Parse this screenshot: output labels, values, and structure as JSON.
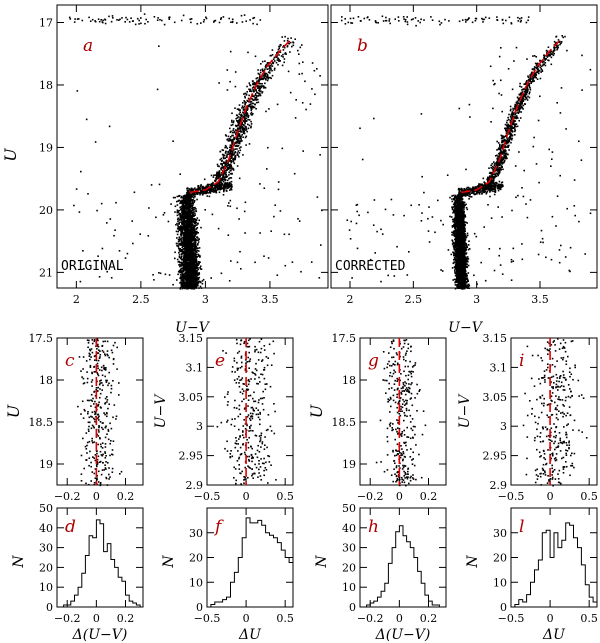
{
  "colors": {
    "points": "#000000",
    "fiducial": "#e00000",
    "letters": "#b00000",
    "hist": "#000000"
  },
  "chart_data": [
    {
      "id": "a",
      "type": "scatter",
      "panel_letter": "a",
      "annotation": "ORIGINAL",
      "title": "",
      "xlabel": "U−V",
      "ylabel": "U",
      "xlim": [
        1.85,
        3.95
      ],
      "ylim": [
        21.25,
        16.72
      ],
      "xticks": [
        2,
        2.5,
        3,
        3.5
      ],
      "xtick_labels": [
        "2",
        "2.5",
        "3",
        "3.5"
      ],
      "yticks": [
        17,
        18,
        19,
        20,
        21
      ],
      "ytick_labels": [
        "17",
        "18",
        "19",
        "20",
        "21"
      ],
      "fiducial_line": {
        "x": [
          2.88,
          3.0,
          3.1,
          3.18,
          3.25,
          3.32,
          3.4,
          3.48,
          3.58,
          3.65
        ],
        "y": [
          19.72,
          19.68,
          19.55,
          19.2,
          18.75,
          18.35,
          17.98,
          17.7,
          17.45,
          17.3
        ]
      }
    },
    {
      "id": "b",
      "type": "scatter",
      "panel_letter": "b",
      "annotation": "CORRECTED",
      "title": "",
      "xlabel": "U−V",
      "ylabel": "",
      "xlim": [
        1.85,
        3.95
      ],
      "ylim": [
        21.25,
        16.72
      ],
      "xticks": [
        2,
        2.5,
        3,
        3.5
      ],
      "xtick_labels": [
        "2",
        "2.5",
        "3",
        "3.5"
      ],
      "yticks": [
        17,
        18,
        19,
        20,
        21
      ],
      "ytick_labels": [],
      "fiducial_line": {
        "x": [
          2.88,
          3.0,
          3.1,
          3.18,
          3.25,
          3.32,
          3.4,
          3.48,
          3.58,
          3.65
        ],
        "y": [
          19.72,
          19.68,
          19.55,
          19.2,
          18.75,
          18.35,
          17.98,
          17.7,
          17.45,
          17.3
        ]
      }
    },
    {
      "id": "c",
      "type": "scatter",
      "panel_letter": "c",
      "xlabel": "",
      "ylabel": "U",
      "xlim": [
        -0.27,
        0.32
      ],
      "ylim": [
        19.25,
        17.5
      ],
      "xticks": [
        -0.2,
        0,
        0.2
      ],
      "xtick_labels": [
        "−0.2",
        "0",
        "0.2"
      ],
      "yticks": [
        17.5,
        18,
        18.5,
        19
      ],
      "ytick_labels": [
        "17.5",
        "18",
        "18.5",
        "19"
      ],
      "reference_line": 0
    },
    {
      "id": "e",
      "type": "scatter",
      "panel_letter": "e",
      "xlabel": "",
      "ylabel": "U−V",
      "xlim": [
        -0.5,
        0.6
      ],
      "ylim": [
        2.9,
        3.15
      ],
      "xticks": [
        -0.5,
        0,
        0.5
      ],
      "xtick_labels": [
        "−0.5",
        "0",
        "0.5"
      ],
      "yticks": [
        2.9,
        2.95,
        3,
        3.05,
        3.1,
        3.15
      ],
      "ytick_labels": [
        "2.9",
        "2.95",
        "3",
        "3.05",
        "3.1",
        "3.15"
      ],
      "reference_line": 0
    },
    {
      "id": "g",
      "type": "scatter",
      "panel_letter": "g",
      "xlabel": "",
      "ylabel": "U",
      "xlim": [
        -0.27,
        0.32
      ],
      "ylim": [
        19.25,
        17.5
      ],
      "xticks": [
        -0.2,
        0,
        0.2
      ],
      "xtick_labels": [
        "−0.2",
        "0",
        "0.2"
      ],
      "yticks": [
        17.5,
        18,
        18.5,
        19
      ],
      "ytick_labels": [
        "17.5",
        "18",
        "18.5",
        "19"
      ],
      "reference_line": 0
    },
    {
      "id": "i",
      "type": "scatter",
      "panel_letter": "i",
      "xlabel": "",
      "ylabel": "U−V",
      "xlim": [
        -0.5,
        0.6
      ],
      "ylim": [
        2.9,
        3.15
      ],
      "xticks": [
        -0.5,
        0,
        0.5
      ],
      "xtick_labels": [
        "−0.5",
        "0",
        "0.5"
      ],
      "yticks": [
        2.9,
        2.95,
        3,
        3.05,
        3.1,
        3.15
      ],
      "ytick_labels": [
        "2.9",
        "2.95",
        "3",
        "3.05",
        "3.1",
        "3.15"
      ],
      "reference_line": 0
    },
    {
      "id": "d",
      "type": "histogram",
      "panel_letter": "d",
      "xlabel": "Δ(U−V)",
      "ylabel": "N",
      "xlim": [
        -0.27,
        0.32
      ],
      "ylim": [
        0,
        50
      ],
      "xticks": [
        -0.2,
        0,
        0.2
      ],
      "xtick_labels": [
        "−0.2",
        "0",
        "0.2"
      ],
      "yticks": [
        0,
        10,
        20,
        30,
        40,
        50
      ],
      "ytick_labels": [
        "0",
        "10",
        "20",
        "30",
        "40",
        "50"
      ],
      "bin_edges": [
        -0.25,
        -0.225,
        -0.2,
        -0.175,
        -0.15,
        -0.125,
        -0.1,
        -0.075,
        -0.05,
        -0.025,
        0,
        0.025,
        0.05,
        0.075,
        0.1,
        0.125,
        0.15,
        0.175,
        0.2,
        0.225,
        0.25,
        0.275,
        0.3
      ],
      "counts": [
        0,
        1,
        1,
        3,
        6,
        10,
        17,
        26,
        36,
        35,
        44,
        42,
        28,
        32,
        24,
        20,
        15,
        13,
        6,
        3,
        2,
        1
      ]
    },
    {
      "id": "f",
      "type": "histogram",
      "panel_letter": "f",
      "xlabel": "ΔU",
      "ylabel": "N",
      "xlim": [
        -0.5,
        0.6
      ],
      "ylim": [
        0,
        40
      ],
      "xticks": [
        -0.5,
        0,
        0.5
      ],
      "xtick_labels": [
        "−0.5",
        "0",
        "0.5"
      ],
      "yticks": [
        0,
        10,
        20,
        30
      ],
      "ytick_labels": [
        "0",
        "10",
        "20",
        "30"
      ],
      "bin_edges": [
        -0.5,
        -0.45,
        -0.4,
        -0.35,
        -0.3,
        -0.25,
        -0.2,
        -0.15,
        -0.1,
        -0.05,
        0,
        0.05,
        0.1,
        0.15,
        0.2,
        0.25,
        0.3,
        0.35,
        0.4,
        0.45,
        0.5,
        0.55,
        0.6
      ],
      "counts": [
        0,
        1,
        2,
        2,
        3,
        4,
        10,
        14,
        20,
        28,
        36,
        34,
        34,
        35,
        33,
        30,
        29,
        28,
        26,
        23,
        20,
        18
      ]
    },
    {
      "id": "h",
      "type": "histogram",
      "panel_letter": "h",
      "xlabel": "Δ(U−V)",
      "ylabel": "N",
      "xlim": [
        -0.27,
        0.32
      ],
      "ylim": [
        0,
        50
      ],
      "xticks": [
        -0.2,
        0,
        0.2
      ],
      "xtick_labels": [
        "−0.2",
        "0",
        "0.2"
      ],
      "yticks": [
        0,
        10,
        20,
        30,
        40,
        50
      ],
      "ytick_labels": [
        "0",
        "10",
        "20",
        "30",
        "40",
        "50"
      ],
      "bin_edges": [
        -0.25,
        -0.225,
        -0.2,
        -0.175,
        -0.15,
        -0.125,
        -0.1,
        -0.075,
        -0.05,
        -0.025,
        0,
        0.025,
        0.05,
        0.075,
        0.1,
        0.125,
        0.15,
        0.175,
        0.2,
        0.225,
        0.25,
        0.275,
        0.3
      ],
      "counts": [
        0,
        1,
        2,
        3,
        5,
        8,
        12,
        22,
        30,
        38,
        41,
        36,
        33,
        30,
        25,
        18,
        12,
        6,
        3,
        1,
        1,
        0
      ]
    },
    {
      "id": "l",
      "type": "histogram",
      "panel_letter": "l",
      "xlabel": "ΔU",
      "ylabel": "N",
      "xlim": [
        -0.5,
        0.6
      ],
      "ylim": [
        0,
        40
      ],
      "xticks": [
        -0.5,
        0,
        0.5
      ],
      "xtick_labels": [
        "−0.5",
        "0",
        "0.5"
      ],
      "yticks": [
        0,
        10,
        20,
        30
      ],
      "ytick_labels": [
        "0",
        "10",
        "20",
        "30"
      ],
      "bin_edges": [
        -0.5,
        -0.45,
        -0.4,
        -0.35,
        -0.3,
        -0.25,
        -0.2,
        -0.15,
        -0.1,
        -0.05,
        0,
        0.05,
        0.1,
        0.15,
        0.2,
        0.25,
        0.3,
        0.35,
        0.4,
        0.45,
        0.5,
        0.55,
        0.6
      ],
      "counts": [
        0,
        1,
        3,
        2,
        5,
        10,
        15,
        19,
        30,
        31,
        20,
        30,
        24,
        27,
        34,
        33,
        28,
        24,
        17,
        9,
        4,
        2
      ]
    }
  ]
}
